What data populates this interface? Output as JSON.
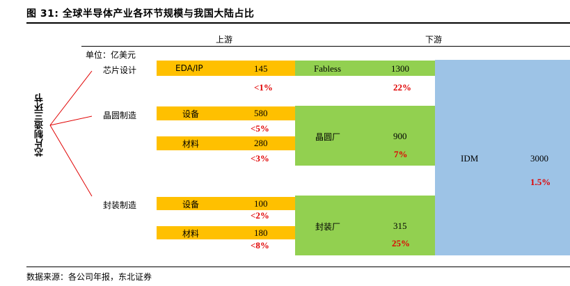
{
  "figure": {
    "title": "图 31: 全球半导体产业各环节规模与我国大陆占比",
    "side_label": "芯片制造三环节",
    "unit": "单位：亿美元",
    "source": "数据来源：各公司年报，东北证券"
  },
  "headers": {
    "upstream": "上游",
    "downstream": "下游"
  },
  "categories": {
    "design": "芯片设计",
    "fab": "晶圆制造",
    "packaging": "封装制造"
  },
  "rows": {
    "eda": {
      "name": "EDA/IP",
      "value": "145",
      "share": "<1%"
    },
    "fabless": {
      "name": "Fabless",
      "value": "1300",
      "share": "22%"
    },
    "fab_equipment": {
      "name": "设备",
      "value": "580",
      "share": "<5%"
    },
    "fab_materials": {
      "name": "材料",
      "value": "280",
      "share": "<3%"
    },
    "foundry": {
      "name": "晶圆厂",
      "value": "900",
      "share": "7%"
    },
    "idm": {
      "name": "IDM",
      "value": "3000",
      "share": "1.5%"
    },
    "pkg_equipment": {
      "name": "设备",
      "value": "100",
      "share": "<2%"
    },
    "pkg_materials": {
      "name": "材料",
      "value": "180",
      "share": "<8%"
    },
    "osat": {
      "name": "封装厂",
      "value": "315",
      "share": "25%"
    }
  },
  "colors": {
    "upstream_box": "#FFC000",
    "downstream_box": "#92D050",
    "idm_box": "#9DC3E6",
    "share_text": "#E00000",
    "connector": "#E00000"
  }
}
